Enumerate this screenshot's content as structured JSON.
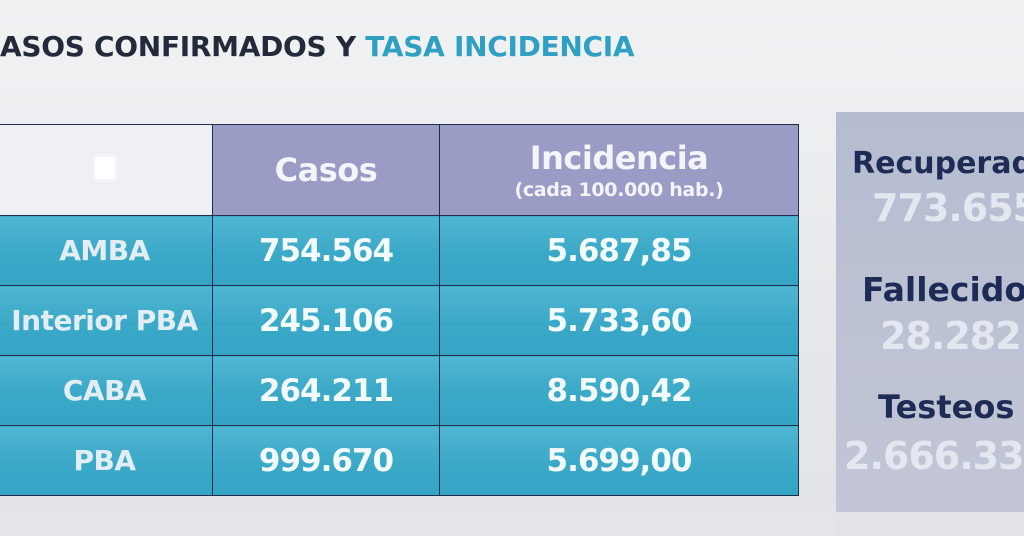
{
  "header": {
    "title_part1": "ASOS CONFIRMADOS Y",
    "title_part2": "TASA INCIDENCIA",
    "title_color_dark": "#232a3a",
    "title_color_accent": "#2f9fc2"
  },
  "table": {
    "columns": {
      "casos": "Casos",
      "incidencia": "Incidencia",
      "incidencia_sub": "(cada 100.000 hab.)"
    },
    "rows": [
      {
        "region": "AMBA",
        "casos": "754.564",
        "incidencia": "5.687,85"
      },
      {
        "region": "Interior PBA",
        "casos": "245.106",
        "incidencia": "5.733,60"
      },
      {
        "region": "CABA",
        "casos": "264.211",
        "incidencia": "8.590,42"
      },
      {
        "region": "PBA",
        "casos": "999.670",
        "incidencia": "5.699,00"
      }
    ],
    "row_color": "#3aa8c7",
    "header_color": "#9a9cc6"
  },
  "stats": {
    "recuperados_label": "Recuperado",
    "recuperados_value": "773.655",
    "fallecidos_label": "Fallecidos",
    "fallecidos_value": "28.282",
    "testeos_label": "Testeos",
    "testeos_value": "2.666.33"
  }
}
